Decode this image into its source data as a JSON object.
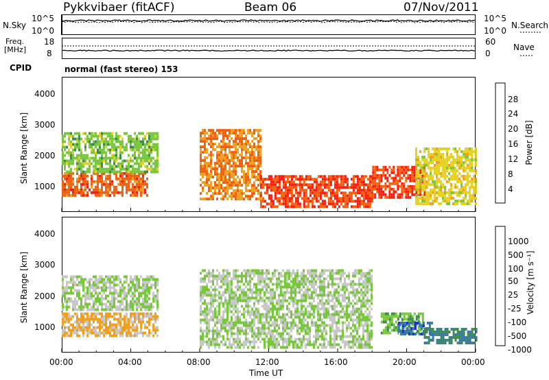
{
  "header": {
    "radar_title": "Pykkvibaer (fitACF)",
    "beam": "Beam 06",
    "date": "07/Nov/2011"
  },
  "noise_panel": {
    "left_label": "N.Sky",
    "left_ticks": [
      "10^5",
      "10^0"
    ],
    "right_ticks": [
      "10^5",
      "10^0"
    ],
    "right_label": "N.Search"
  },
  "freq_panel": {
    "left_label_1": "Freq.",
    "left_label_2": "[MHz]",
    "left_ticks": [
      "18",
      "8"
    ],
    "right_ticks": [
      "60",
      "0"
    ],
    "right_label": "Nave"
  },
  "cpid": {
    "label": "CPID",
    "mode": "normal (fast stereo) 153"
  },
  "x_axis": {
    "label": "Time UT",
    "ticks": [
      "00:00",
      "04:00",
      "08:00",
      "12:00",
      "16:00",
      "20:00",
      "00:00"
    ]
  },
  "power_panel": {
    "ylabel": "Slant Range [km]",
    "yticks": [
      "4000",
      "3000",
      "2000",
      "1000"
    ],
    "colorbar_label": "Power [dB]",
    "colorbar_ticks": [
      "28",
      "24",
      "20",
      "16",
      "12",
      "8",
      "4"
    ],
    "colors": [
      "#0018ff",
      "#2850b8",
      "#3c8c4c",
      "#78c83c",
      "#e8d020",
      "#f0a020",
      "#f06010",
      "#f02010"
    ]
  },
  "velocity_panel": {
    "ylabel": "Slant Range [km]",
    "yticks": [
      "4000",
      "3000",
      "2000",
      "1000"
    ],
    "colorbar_label": "Velocity [m s⁻¹]",
    "colorbar_ticks": [
      "1000",
      "500",
      "100",
      "50",
      "25",
      "-25",
      "-100",
      "-500",
      "-1000"
    ],
    "colors": [
      "#1830c8",
      "#3878a8",
      "#3c8c4c",
      "#78c83c",
      "#c8c8c8",
      "#f0a020",
      "#f07010",
      "#f02010"
    ]
  },
  "chart_data": [
    {
      "type": "heatmap",
      "title": "Power",
      "xlabel": "Time UT",
      "ylabel": "Slant Range [km]",
      "xlim": [
        "00:00",
        "24:00"
      ],
      "ylim": [
        200,
        4600
      ],
      "colorbar": {
        "label": "Power [dB]",
        "range": [
          0,
          32
        ]
      },
      "regions": [
        {
          "time": [
            "00:00",
            "05:00"
          ],
          "range": [
            700,
            1500
          ],
          "power_db": 26
        },
        {
          "time": [
            "00:00",
            "05:30"
          ],
          "range": [
            1500,
            2800
          ],
          "power_db": 14
        },
        {
          "time": [
            "08:00",
            "11:30"
          ],
          "range": [
            600,
            2900
          ],
          "power_db": 24
        },
        {
          "time": [
            "11:30",
            "18:00"
          ],
          "range": [
            400,
            1400
          ],
          "power_db": 28
        },
        {
          "time": [
            "18:00",
            "21:00"
          ],
          "range": [
            700,
            1700
          ],
          "power_db": 28
        },
        {
          "time": [
            "20:30",
            "24:00"
          ],
          "range": [
            500,
            2300
          ],
          "power_db": 18
        }
      ]
    },
    {
      "type": "heatmap",
      "title": "Velocity",
      "xlabel": "Time UT",
      "ylabel": "Slant Range [km]",
      "xlim": [
        "00:00",
        "24:00"
      ],
      "ylim": [
        200,
        4600
      ],
      "colorbar": {
        "label": "Velocity [m s⁻¹]",
        "range": [
          -1000,
          1000
        ]
      },
      "regions": [
        {
          "time": [
            "00:00",
            "05:30"
          ],
          "range": [
            700,
            1500
          ],
          "velocity": -300
        },
        {
          "time": [
            "00:00",
            "05:30"
          ],
          "range": [
            1600,
            2700
          ],
          "velocity": 0
        },
        {
          "time": [
            "08:00",
            "18:00"
          ],
          "range": [
            400,
            2900
          ],
          "velocity": 0
        },
        {
          "time": [
            "18:30",
            "21:00"
          ],
          "range": [
            800,
            1500
          ],
          "velocity": 200
        },
        {
          "time": [
            "19:30",
            "21:30"
          ],
          "range": [
            800,
            1200
          ],
          "velocity": 700
        },
        {
          "time": [
            "21:00",
            "24:00"
          ],
          "range": [
            500,
            1000
          ],
          "velocity": 500
        }
      ]
    }
  ]
}
